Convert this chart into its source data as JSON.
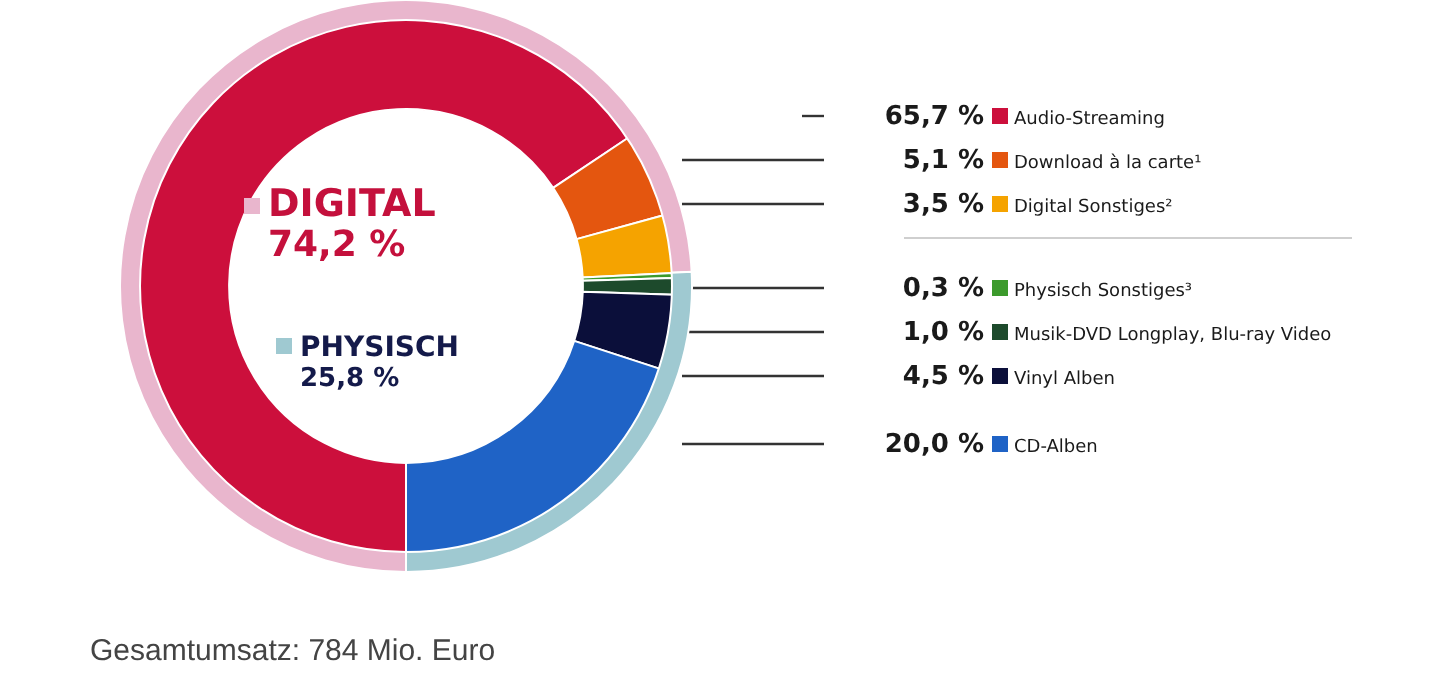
{
  "chart_data": [
    {
      "type": "donut",
      "categories": [
        "DIGITAL",
        "PHYSISCH"
      ],
      "values": [
        74.2,
        25.8
      ],
      "colors": [
        "#e9b6cd",
        "#9fc9d1"
      ],
      "value_labels": [
        "74,2 %",
        "25,8 %"
      ],
      "legend": "center"
    },
    {
      "type": "donut",
      "categories": [
        "Audio-Streaming",
        "Download à la carte¹",
        "Digital Sonstiges²",
        "Physisch Sonstiges³",
        "Musik-DVD Longplay, Blu-ray Video",
        "Vinyl Alben",
        "CD-Alben"
      ],
      "values": [
        65.7,
        5.1,
        3.5,
        0.3,
        1.0,
        4.5,
        20.0
      ],
      "colors": [
        "#cc0f3c",
        "#e4560f",
        "#f5a300",
        "#3c9a2c",
        "#1d4a2c",
        "#0b0f3a",
        "#1f63c6"
      ],
      "value_labels": [
        "65,7 %",
        "5,1 %",
        "3,5 %",
        "0,3 %",
        "1,0 %",
        "4,5 %",
        "20,0 %"
      ],
      "annotations": [
        "Gesamtumsatz: 784 Mio. Euro"
      ],
      "legend": "right"
    }
  ]
}
